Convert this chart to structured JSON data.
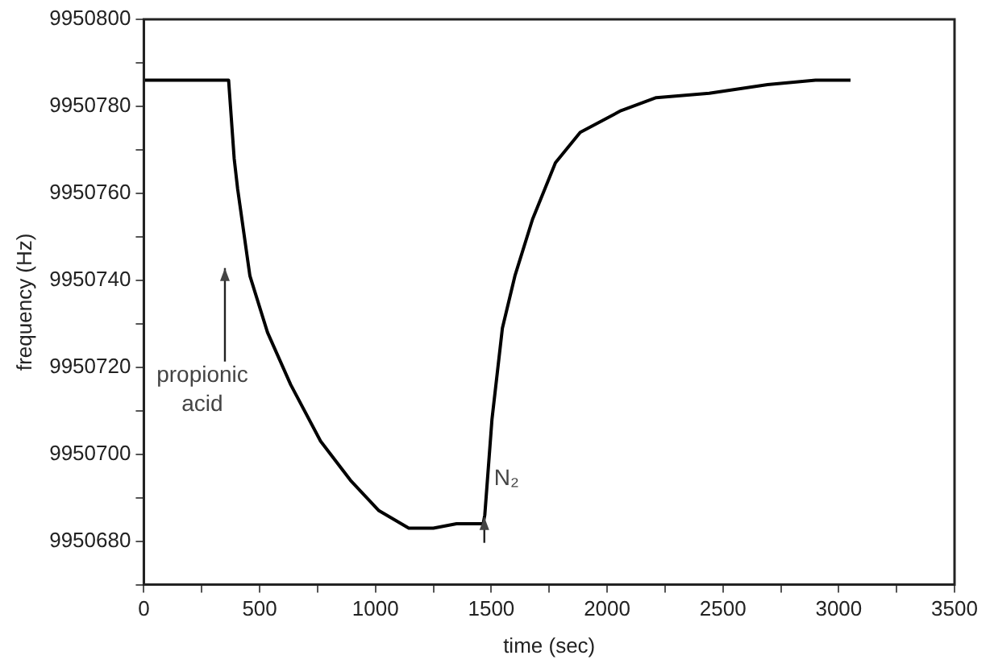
{
  "chart_data": {
    "type": "line",
    "xlabel": "time (sec)",
    "ylabel": "frequency (Hz)",
    "x": [
      0,
      100,
      200,
      300,
      366,
      390,
      405,
      458,
      534,
      634,
      763,
      892,
      1015,
      1144,
      1250,
      1350,
      1465,
      1472,
      1503,
      1548,
      1602,
      1678,
      1777,
      1884,
      2060,
      2212,
      2441,
      2693,
      2900,
      3051
    ],
    "series": [
      {
        "color": "#000000",
        "values": [
          9950786,
          9950786,
          9950786,
          9950786,
          9950786,
          9950768,
          9950761,
          9950741,
          9950728,
          9950716,
          9950703,
          9950694,
          9950687,
          9950683,
          9950683,
          9950684,
          9950684,
          9950686,
          9950708,
          9950729,
          9950741,
          9950754,
          9950767,
          9950774,
          9950779,
          9950782,
          9950783,
          9950785,
          9950786,
          9950786
        ]
      }
    ],
    "xlim": [
      0,
      3500
    ],
    "ylim": [
      9950670,
      9950800
    ],
    "xticks": [
      0,
      {
        "value": 250,
        "label": null
      },
      500,
      {
        "value": 750,
        "label": null
      },
      1000,
      {
        "value": 1250,
        "label": null
      },
      1500,
      {
        "value": 1750,
        "label": null
      },
      2000,
      {
        "value": 2250,
        "label": null
      },
      2500,
      {
        "value": 2750,
        "label": null
      },
      3000,
      {
        "value": 3250,
        "label": null
      },
      3500
    ],
    "yticks": [
      {
        "value": 9950670,
        "label": null
      },
      9950680,
      {
        "value": 9950690,
        "label": null
      },
      9950700,
      {
        "value": 9950710,
        "label": null
      },
      9950720,
      {
        "value": 9950730,
        "label": null
      },
      9950740,
      {
        "value": 9950750,
        "label": null
      },
      9950760,
      {
        "value": 9950770,
        "label": null
      },
      9950780,
      {
        "value": 9950790,
        "label": null
      },
      9950800
    ],
    "annotations": [
      "propionic acid",
      "N₂"
    ],
    "grid": false,
    "legend": false,
    "marker": "none",
    "line_style": "solid"
  }
}
